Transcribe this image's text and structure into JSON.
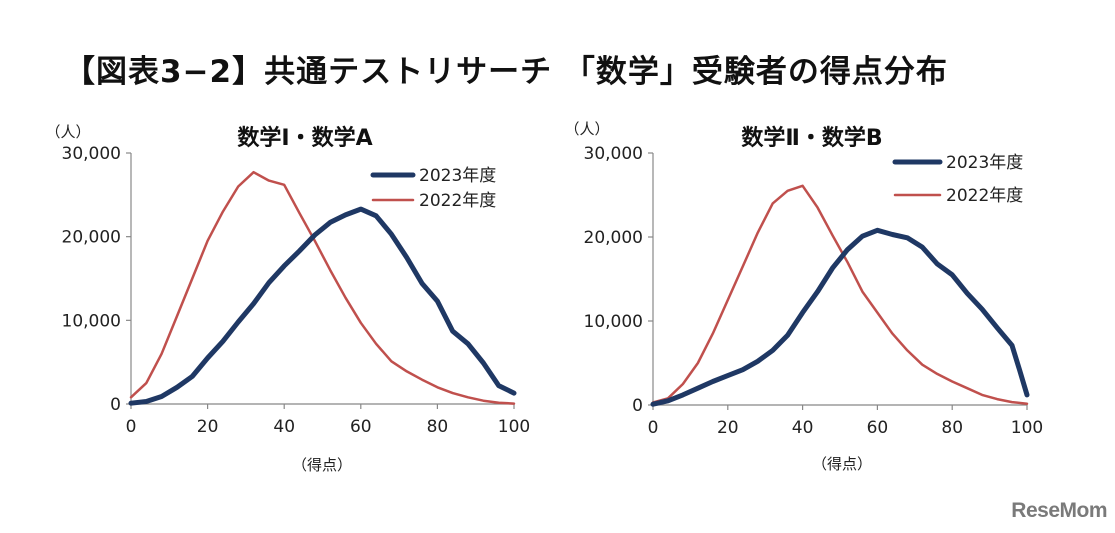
{
  "title": "【図表3−2】共通テストリサーチ 「数学」受験者の得点分布",
  "brand": "ReseMom",
  "chart_data": [
    {
      "type": "line",
      "title": "数学Ⅰ・数学A",
      "ylabel": "（人）",
      "xlabel": "（得点）",
      "xlim": [
        0,
        100
      ],
      "ylim": [
        0,
        30000
      ],
      "xticks": [
        0,
        20,
        40,
        60,
        80,
        100
      ],
      "yticks": [
        0,
        10000,
        20000,
        30000
      ],
      "ytick_labels": [
        "0",
        "10,000",
        "20,000",
        "30,000"
      ],
      "legend": "top-right",
      "series": [
        {
          "name": "2023年度",
          "color": "#1f3864",
          "x": [
            0,
            4,
            8,
            12,
            16,
            20,
            24,
            28,
            32,
            36,
            40,
            44,
            48,
            52,
            56,
            60,
            64,
            68,
            72,
            76,
            80,
            84,
            88,
            92,
            96,
            100
          ],
          "y": [
            100,
            300,
            900,
            2000,
            3300,
            5500,
            7500,
            9800,
            12000,
            14500,
            16500,
            18300,
            20200,
            21700,
            22600,
            23300,
            22500,
            20300,
            17500,
            14400,
            12300,
            8700,
            7200,
            4900,
            2200,
            1300
          ]
        },
        {
          "name": "2022年度",
          "color": "#c0504d",
          "x": [
            0,
            4,
            8,
            12,
            16,
            20,
            24,
            28,
            32,
            36,
            40,
            44,
            48,
            52,
            56,
            60,
            64,
            68,
            72,
            76,
            80,
            84,
            88,
            92,
            96,
            100
          ],
          "y": [
            800,
            2500,
            6000,
            10500,
            15000,
            19500,
            23000,
            26000,
            27700,
            26700,
            26200,
            22800,
            19500,
            16000,
            12700,
            9700,
            7200,
            5100,
            3900,
            2900,
            2000,
            1300,
            800,
            400,
            150,
            50
          ]
        }
      ]
    },
    {
      "type": "line",
      "title": "数学Ⅱ・数学B",
      "ylabel": "（人）",
      "xlabel": "（得点）",
      "xlim": [
        0,
        100
      ],
      "ylim": [
        0,
        30000
      ],
      "xticks": [
        0,
        20,
        40,
        60,
        80,
        100
      ],
      "yticks": [
        0,
        10000,
        20000,
        30000
      ],
      "ytick_labels": [
        "0",
        "10,000",
        "20,000",
        "30,000"
      ],
      "legend": "top-right",
      "series": [
        {
          "name": "2023年度",
          "color": "#1f3864",
          "x": [
            0,
            4,
            8,
            12,
            16,
            20,
            24,
            28,
            32,
            36,
            40,
            44,
            48,
            52,
            56,
            60,
            64,
            68,
            72,
            76,
            80,
            84,
            88,
            92,
            96,
            98,
            100
          ],
          "y": [
            100,
            500,
            1200,
            2000,
            2800,
            3500,
            4200,
            5200,
            6500,
            8300,
            11000,
            13500,
            16300,
            18500,
            20100,
            20800,
            20300,
            19900,
            18800,
            16800,
            15500,
            13300,
            11400,
            9200,
            7100,
            4200,
            1200
          ]
        },
        {
          "name": "2022年度",
          "color": "#c0504d",
          "x": [
            0,
            4,
            8,
            12,
            16,
            20,
            24,
            28,
            32,
            36,
            40,
            44,
            48,
            52,
            56,
            60,
            64,
            68,
            72,
            76,
            80,
            84,
            88,
            92,
            96,
            100
          ],
          "y": [
            300,
            800,
            2500,
            5000,
            8500,
            12500,
            16500,
            20500,
            24000,
            25500,
            26100,
            23500,
            20200,
            17000,
            13500,
            11000,
            8500,
            6500,
            4800,
            3700,
            2800,
            2000,
            1200,
            700,
            350,
            150
          ]
        }
      ]
    }
  ]
}
